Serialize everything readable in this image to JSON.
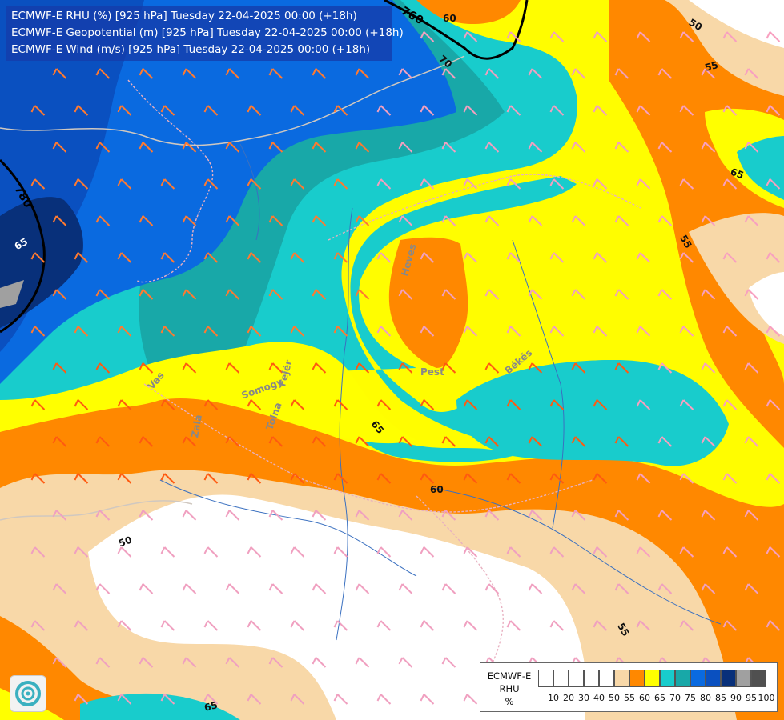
{
  "title": {
    "lines": [
      "ECMWF-E RHU (%) [925 hPa] Tuesday 22-04-2025 00:00 (+18h)",
      "ECMWF-E Geopotential (m) [925 hPa] Tuesday 22-04-2025 00:00 (+18h)",
      "ECMWF-E Wind (m/s) [925 hPa] Tuesday 22-04-2025 00:00 (+18h)"
    ]
  },
  "legend": {
    "title_lines": [
      "ECMWF-E",
      "RHU",
      "%"
    ],
    "ticks": [
      "10",
      "20",
      "30",
      "40",
      "50",
      "55",
      "60",
      "65",
      "70",
      "75",
      "80",
      "85",
      "90",
      "95",
      "100"
    ],
    "colors": [
      "#ffffff",
      "#ffffff",
      "#ffffff",
      "#ffffff",
      "#ffffff",
      "#f8d8a8",
      "#ff8800",
      "#ffff00",
      "#18cccc",
      "#18a8a8",
      "#0a6ae0",
      "#0a50c0",
      "#08307a",
      "#a0a0a0",
      "#505050"
    ]
  },
  "contour_labels": {
    "rhu": [
      "65",
      "60",
      "50",
      "55",
      "55",
      "65",
      "60",
      "50",
      "55",
      "65",
      "65",
      "70"
    ],
    "height": [
      "760",
      "780"
    ]
  },
  "place_labels": {
    "heves": "Heves",
    "pest": "Pest",
    "bekes": "Békés",
    "somogy": "Somogy",
    "fejer": "Fejér",
    "tolna": "Tolna",
    "zala": "Zala",
    "vas": "Vas"
  },
  "palette": {
    "white": "#ffffff",
    "tan": "#f8d8a8",
    "orange": "#ff8800",
    "yellow": "#ffff00",
    "cyan": "#18cccc",
    "teal": "#18a8a8",
    "blue": "#0a6ae0",
    "darkblue": "#0a50c0",
    "navy": "#08307a",
    "grey": "#a0a0a0"
  },
  "logo": {
    "icon": "ecmwf-swirl-icon"
  }
}
